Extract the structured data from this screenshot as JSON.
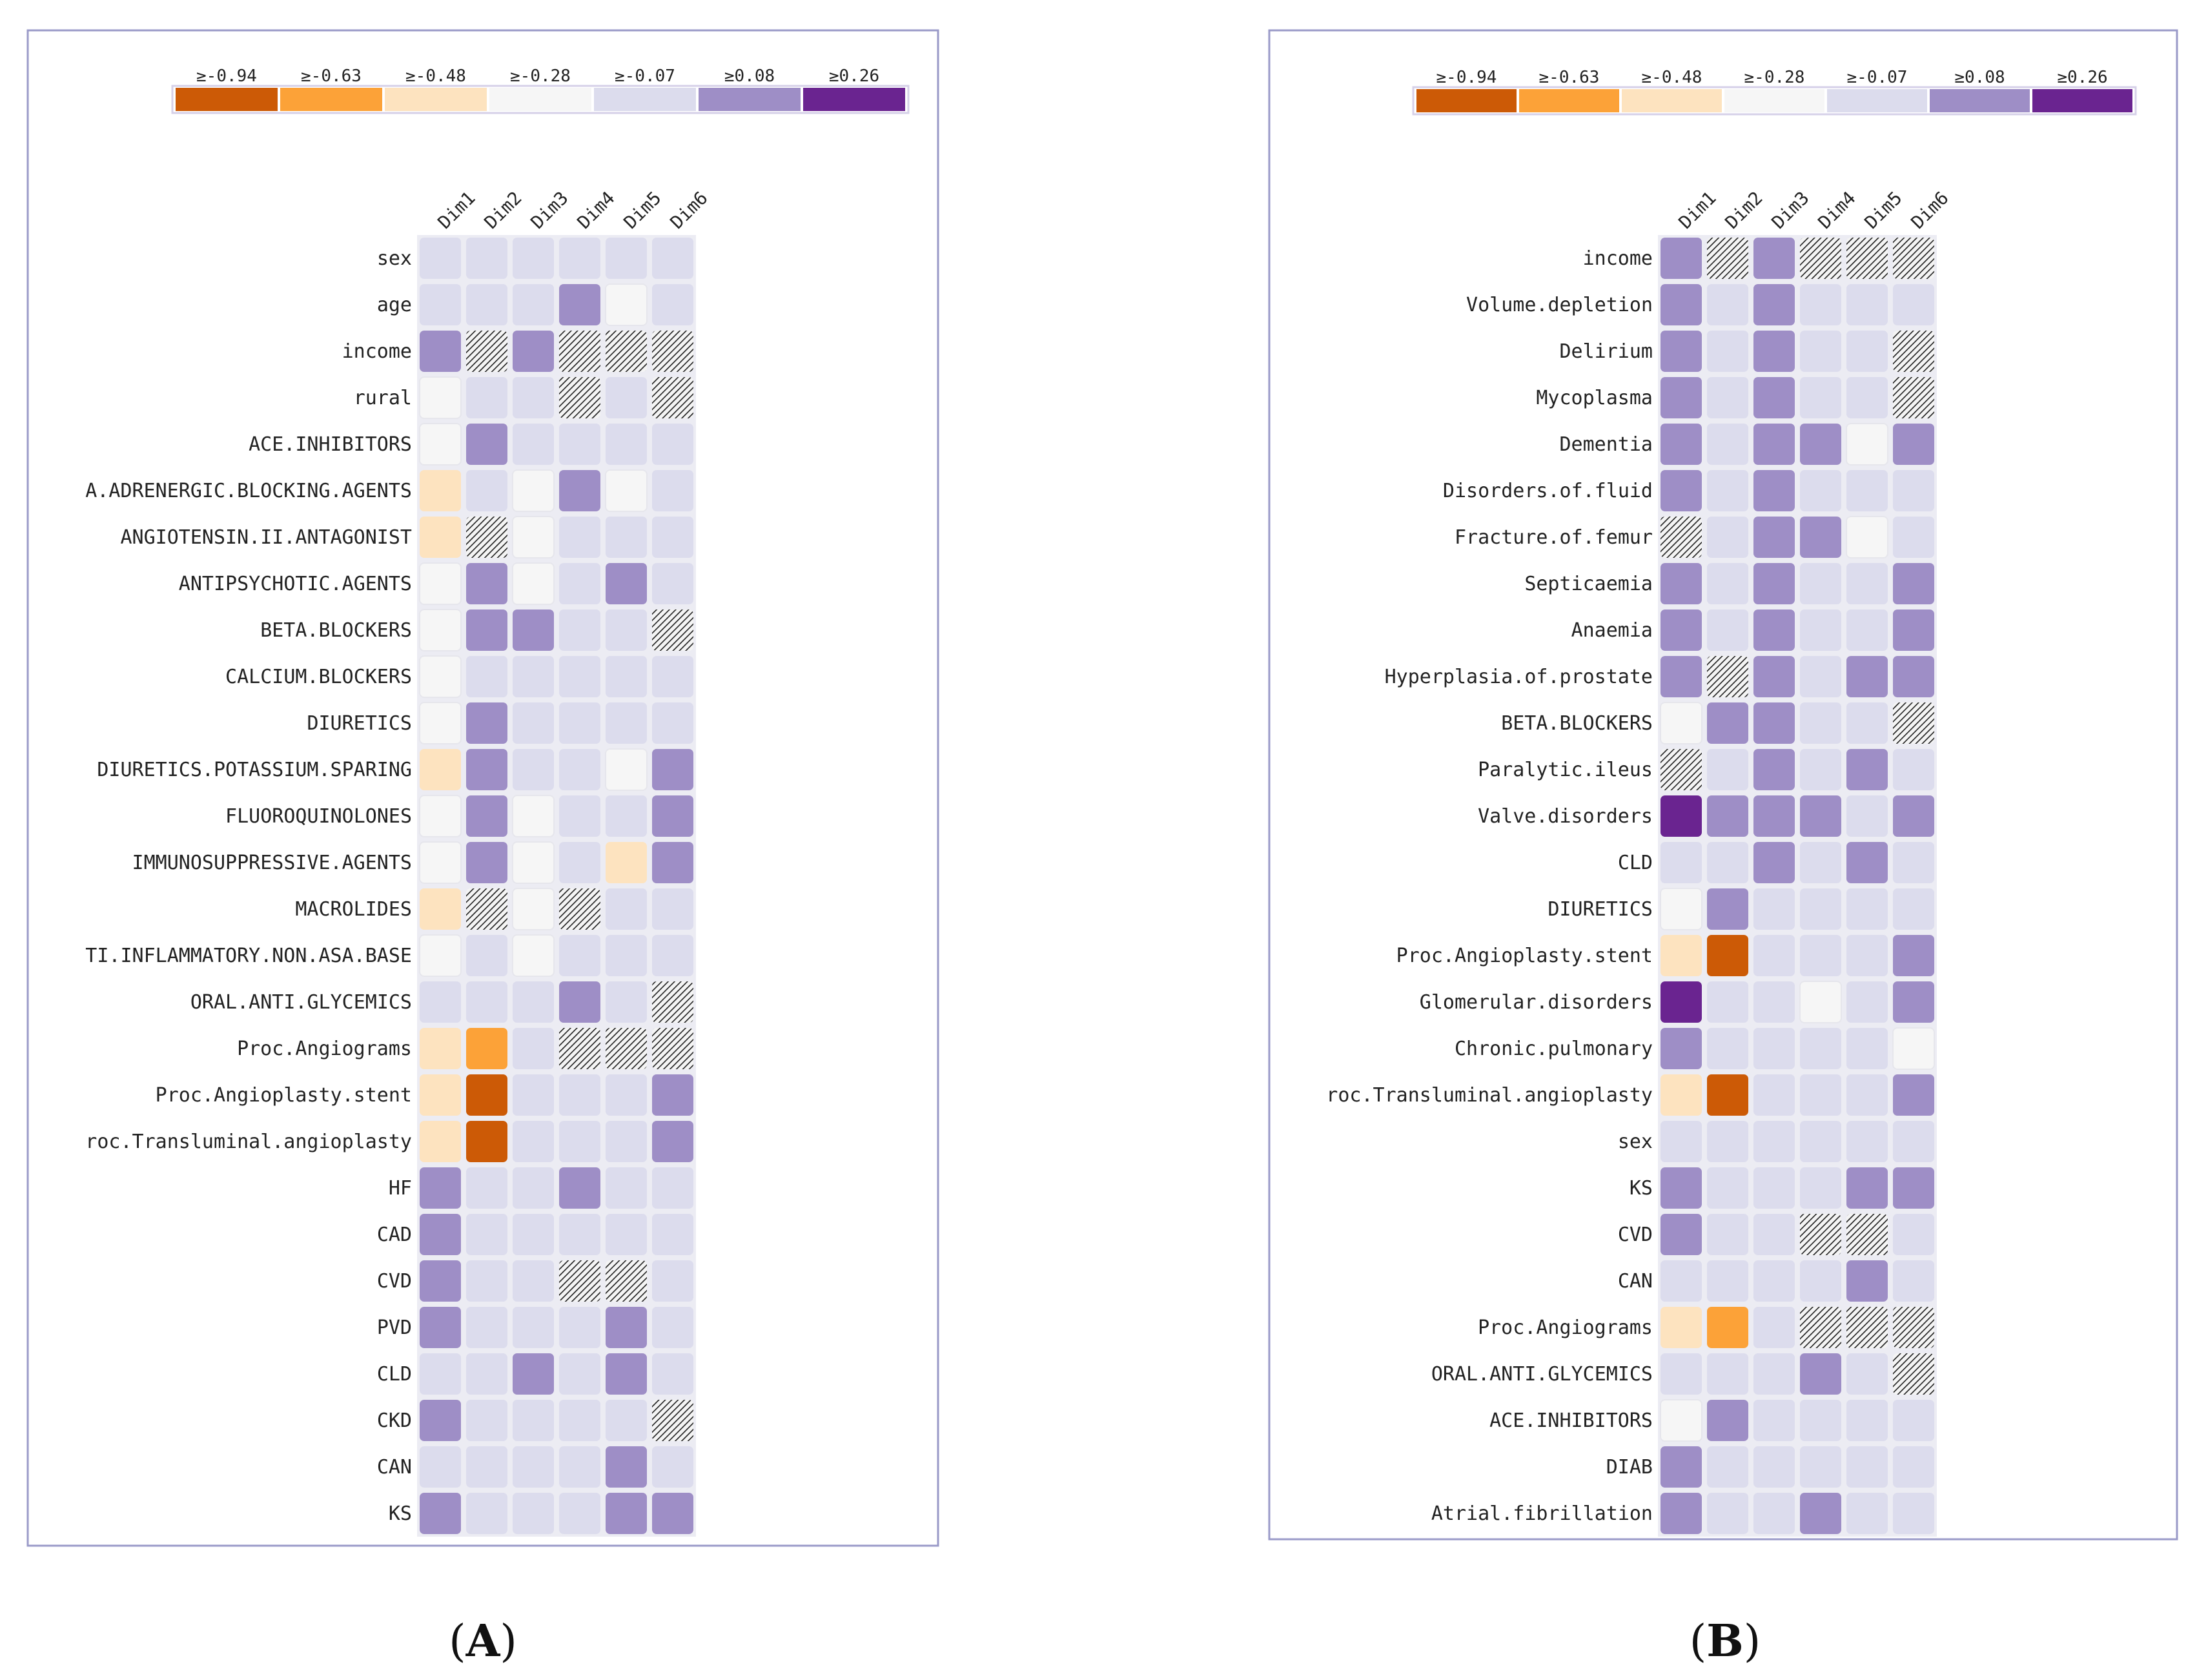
{
  "figure": {
    "panels": [
      "A",
      "B"
    ]
  },
  "legend": {
    "thresholds": [
      "≥-0.94",
      "≥-0.63",
      "≥-0.48",
      "≥-0.28",
      "≥-0.07",
      "≥0.08",
      "≥0.26"
    ],
    "colors": [
      "#cc5a06",
      "#fca238",
      "#fde3bf",
      "#f6f6f6",
      "#dcdced",
      "#9e8ec6",
      "#6a2490"
    ],
    "hatch_meaning": "non-significant"
  },
  "chart_data": [
    {
      "type": "heatmap",
      "panel": "A",
      "caption_text": "A",
      "columns": [
        "Dim1",
        "Dim2",
        "Dim3",
        "Dim4",
        "Dim5",
        "Dim6"
      ],
      "highlighted_column": null,
      "rows": [
        "sex",
        "age",
        "income",
        "rural",
        "ACE.INHIBITORS",
        "ALPHA.ADRENERGIC.BLOCKING.AGENTS",
        "ANGIOTENSIN.II.ANTAGONIST",
        "ANTIPSYCHOTIC.AGENTS",
        "BETA.BLOCKERS",
        "CALCIUM.BLOCKERS",
        "DIURETICS",
        "DIURETICS.POTASSIUM.SPARING",
        "FLUOROQUINOLONES",
        "IMMUNOSUPPRESSIVE.AGENTS",
        "MACROLIDES",
        "ANTI.INFLAMMATORY.NON.ASA.BASE",
        "ORAL.ANTI.GLYCEMICS",
        "Proc.Angiograms",
        "Proc.Angioplasty.stent",
        "Proc.Transluminal.angioplasty",
        "HF",
        "CAD",
        "CVD",
        "PVD",
        "CLD",
        "CKD",
        "CAN",
        "KS"
      ],
      "row_labels_displayed": [
        "sex",
        "age",
        "income",
        "rural",
        "ACE.INHIBITORS",
        "A.ADRENERGIC.BLOCKING.AGENTS",
        "ANGIOTENSIN.II.ANTAGONIST",
        "ANTIPSYCHOTIC.AGENTS",
        "BETA.BLOCKERS",
        "CALCIUM.BLOCKERS",
        "DIURETICS",
        "DIURETICS.POTASSIUM.SPARING",
        "FLUOROQUINOLONES",
        "IMMUNOSUPPRESSIVE.AGENTS",
        "MACROLIDES",
        "TI.INFLAMMATORY.NON.ASA.BASE",
        "ORAL.ANTI.GLYCEMICS",
        "Proc.Angiograms",
        "Proc.Angioplasty.stent",
        "roc.Transluminal.angioplasty",
        "HF",
        "CAD",
        "CVD",
        "PVD",
        "CLD",
        "CKD",
        "CAN",
        "KS"
      ],
      "cells_note": "values are legend bin indices 0-6 (0 = ≥-0.94 ... 6 = ≥0.26); 'h' = hatched (non-significant)",
      "cells": [
        [
          4,
          4,
          4,
          4,
          4,
          4
        ],
        [
          4,
          4,
          4,
          5,
          3,
          4
        ],
        [
          5,
          "h",
          5,
          "h",
          "h",
          "h"
        ],
        [
          3,
          4,
          4,
          "h",
          4,
          "h"
        ],
        [
          3,
          5,
          4,
          4,
          4,
          4
        ],
        [
          2,
          4,
          3,
          5,
          3,
          4
        ],
        [
          2,
          "h",
          3,
          4,
          4,
          4
        ],
        [
          3,
          5,
          3,
          4,
          5,
          4
        ],
        [
          3,
          5,
          5,
          4,
          4,
          "h"
        ],
        [
          3,
          4,
          4,
          4,
          4,
          4
        ],
        [
          3,
          5,
          4,
          4,
          4,
          4
        ],
        [
          2,
          5,
          4,
          4,
          3,
          5
        ],
        [
          3,
          5,
          3,
          4,
          4,
          5
        ],
        [
          3,
          5,
          3,
          4,
          2,
          5
        ],
        [
          2,
          "h",
          3,
          "h",
          4,
          4
        ],
        [
          3,
          4,
          3,
          4,
          4,
          4
        ],
        [
          4,
          4,
          4,
          5,
          4,
          "h"
        ],
        [
          2,
          1,
          4,
          "h",
          "h",
          "h"
        ],
        [
          2,
          0,
          4,
          4,
          4,
          5
        ],
        [
          2,
          0,
          4,
          4,
          4,
          5
        ],
        [
          5,
          4,
          4,
          5,
          4,
          4
        ],
        [
          5,
          4,
          4,
          4,
          4,
          4
        ],
        [
          5,
          4,
          4,
          "h",
          "h",
          4
        ],
        [
          5,
          4,
          4,
          4,
          5,
          4
        ],
        [
          4,
          4,
          5,
          4,
          5,
          4
        ],
        [
          5,
          4,
          4,
          4,
          4,
          "h"
        ],
        [
          4,
          4,
          4,
          4,
          5,
          4
        ],
        [
          5,
          4,
          4,
          4,
          5,
          5
        ]
      ]
    },
    {
      "type": "heatmap",
      "panel": "B",
      "caption_text": "B",
      "columns": [
        "Dim1",
        "Dim2",
        "Dim3",
        "Dim4",
        "Dim5",
        "Dim6"
      ],
      "highlighted_column": "Dim3",
      "rows": [
        "income",
        "Volume.depletion",
        "Delirium",
        "Mycoplasma",
        "Dementia",
        "Disorders.of.fluid",
        "Fracture.of.femur",
        "Septicaemia",
        "Anaemia",
        "Hyperplasia.of.prostate",
        "BETA.BLOCKERS",
        "Paralytic.ileus",
        "Valve.disorders",
        "CLD",
        "DIURETICS",
        "Proc.Angioplasty.stent",
        "Glomerular.disorders",
        "Chronic.pulmonary",
        "Proc.Transluminal.angioplasty",
        "sex",
        "KS",
        "CVD",
        "CAN",
        "Proc.Angiograms",
        "ORAL.ANTI.GLYCEMICS",
        "ACE.INHIBITORS",
        "DIAB",
        "Atrial.fibrillation"
      ],
      "row_labels_displayed": [
        "income",
        "Volume.depletion",
        "Delirium",
        "Mycoplasma",
        "Dementia",
        "Disorders.of.fluid",
        "Fracture.of.femur",
        "Septicaemia",
        "Anaemia",
        "Hyperplasia.of.prostate",
        "BETA.BLOCKERS",
        "Paralytic.ileus",
        "Valve.disorders",
        "CLD",
        "DIURETICS",
        "Proc.Angioplasty.stent",
        "Glomerular.disorders",
        "Chronic.pulmonary",
        "roc.Transluminal.angioplasty",
        "sex",
        "KS",
        "CVD",
        "CAN",
        "Proc.Angiograms",
        "ORAL.ANTI.GLYCEMICS",
        "ACE.INHIBITORS",
        "DIAB",
        "Atrial.fibrillation"
      ],
      "cells_note": "values are legend bin indices 0-6; 'h' = hatched (non-significant)",
      "cells": [
        [
          5,
          "h",
          5,
          "h",
          "h",
          "h"
        ],
        [
          5,
          4,
          5,
          4,
          4,
          4
        ],
        [
          5,
          4,
          5,
          4,
          4,
          "h"
        ],
        [
          5,
          4,
          5,
          4,
          4,
          "h"
        ],
        [
          5,
          4,
          5,
          5,
          3,
          5
        ],
        [
          5,
          4,
          5,
          4,
          4,
          4
        ],
        [
          "h",
          4,
          5,
          5,
          3,
          4
        ],
        [
          5,
          4,
          5,
          4,
          4,
          5
        ],
        [
          5,
          4,
          5,
          4,
          4,
          5
        ],
        [
          5,
          "h",
          5,
          4,
          5,
          5
        ],
        [
          3,
          5,
          5,
          4,
          4,
          "h"
        ],
        [
          "h",
          4,
          5,
          4,
          5,
          4
        ],
        [
          6,
          5,
          5,
          5,
          4,
          5
        ],
        [
          4,
          4,
          5,
          4,
          5,
          4
        ],
        [
          3,
          5,
          4,
          4,
          4,
          4
        ],
        [
          2,
          0,
          4,
          4,
          4,
          5
        ],
        [
          6,
          4,
          4,
          3,
          4,
          5
        ],
        [
          5,
          4,
          4,
          4,
          4,
          3
        ],
        [
          2,
          0,
          4,
          4,
          4,
          5
        ],
        [
          4,
          4,
          4,
          4,
          4,
          4
        ],
        [
          5,
          4,
          4,
          4,
          5,
          5
        ],
        [
          5,
          4,
          4,
          "h",
          "h",
          4
        ],
        [
          4,
          4,
          4,
          4,
          5,
          4
        ],
        [
          2,
          1,
          4,
          "h",
          "h",
          "h"
        ],
        [
          4,
          4,
          4,
          5,
          4,
          "h"
        ],
        [
          3,
          5,
          4,
          4,
          4,
          4
        ],
        [
          5,
          4,
          4,
          4,
          4,
          4
        ],
        [
          5,
          4,
          4,
          5,
          4,
          4
        ]
      ]
    }
  ]
}
